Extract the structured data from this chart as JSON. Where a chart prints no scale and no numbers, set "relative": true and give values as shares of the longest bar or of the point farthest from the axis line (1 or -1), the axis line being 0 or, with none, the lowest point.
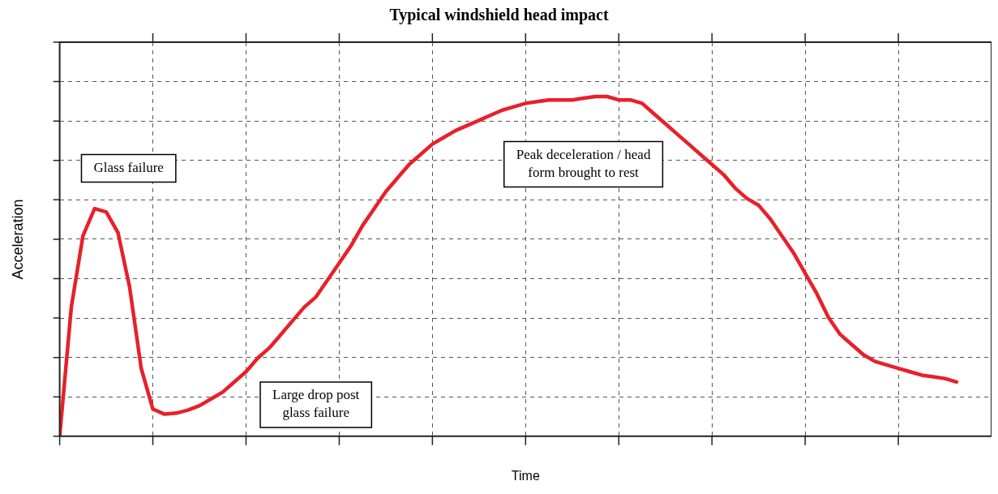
{
  "chart_data": {
    "type": "line",
    "title": "Typical windshield head impact",
    "xlabel": "Time",
    "ylabel": "Acceleration",
    "relative": true,
    "categories": [
      null,
      null,
      null,
      null,
      null,
      null,
      null,
      null,
      null,
      null,
      null,
      null,
      null,
      null,
      null,
      null,
      null,
      null,
      null,
      null,
      null,
      null,
      null,
      null,
      null,
      null,
      null,
      null,
      null,
      null,
      null,
      null,
      null,
      null,
      null,
      null,
      null,
      null,
      null,
      null,
      null,
      null,
      null,
      null,
      null,
      null,
      null,
      null,
      null,
      null,
      null,
      null,
      null,
      null,
      null,
      null,
      null,
      null,
      null,
      null,
      null,
      null,
      null,
      null,
      null,
      null,
      null,
      null,
      null,
      null,
      null,
      null,
      null,
      null,
      null,
      null,
      null,
      null
    ],
    "grid": true,
    "legend": false,
    "marker": "none",
    "line_style": "solid",
    "series": [
      {
        "color": "#e8202a",
        "values": [
          0,
          0.38,
          0.59,
          0.67,
          0.66,
          0.6,
          0.44,
          0.2,
          0.08,
          0.065,
          0.068,
          0.077,
          0.09,
          0.11,
          0.13,
          0.16,
          0.19,
          0.23,
          0.26,
          0.3,
          0.34,
          0.38,
          0.41,
          0.46,
          0.51,
          0.56,
          0.62,
          0.67,
          0.72,
          0.76,
          0.8,
          0.83,
          0.86,
          0.88,
          0.9,
          0.915,
          0.93,
          0.945,
          0.96,
          0.97,
          0.98,
          0.985,
          0.99,
          0.99,
          0.99,
          0.995,
          1,
          1,
          0.99,
          0.99,
          0.98,
          0.95,
          0.92,
          0.89,
          0.86,
          0.83,
          0.8,
          0.77,
          0.73,
          0.7,
          0.68,
          0.64,
          0.59,
          0.54,
          0.48,
          0.42,
          0.35,
          0.3,
          0.27,
          0.24,
          0.22,
          0.21,
          0.2,
          0.19,
          0.18,
          0.175,
          0.17,
          0.16
        ]
      }
    ],
    "annotations": [
      "Glass failure",
      "Peak deceleration / head\nform brought to rest",
      "Large drop post\nglass failure"
    ]
  }
}
